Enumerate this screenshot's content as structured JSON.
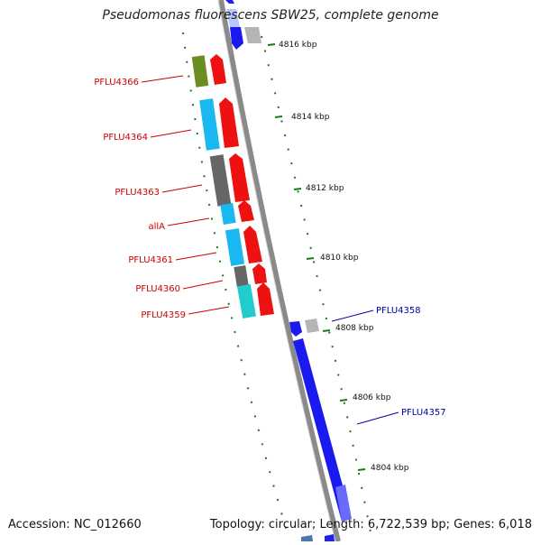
{
  "title": "Pseudomonas fluorescens SBW25, complete genome",
  "footer": {
    "accession": "Accession: NC_012660",
    "summary": "Topology: circular; Length: 6,722,539 bp; Genes: 6,018"
  },
  "colors": {
    "backbone": "#888888",
    "ticks": "#1a7a1a",
    "forward_label": "#cc0000",
    "reverse_label": "#0000aa"
  },
  "ticks": [
    "4816 kbp",
    "4814 kbp",
    "4812 kbp",
    "4810 kbp",
    "4808 kbp",
    "4806 kbp",
    "4804 kbp"
  ],
  "gene_labels_left": [
    "PFLU4366",
    "PFLU4364",
    "PFLU4363",
    "allA",
    "PFLU4361",
    "PFLU4360",
    "PFLU4359"
  ],
  "gene_labels_right": [
    "PFLU4358",
    "PFLU4357"
  ]
}
